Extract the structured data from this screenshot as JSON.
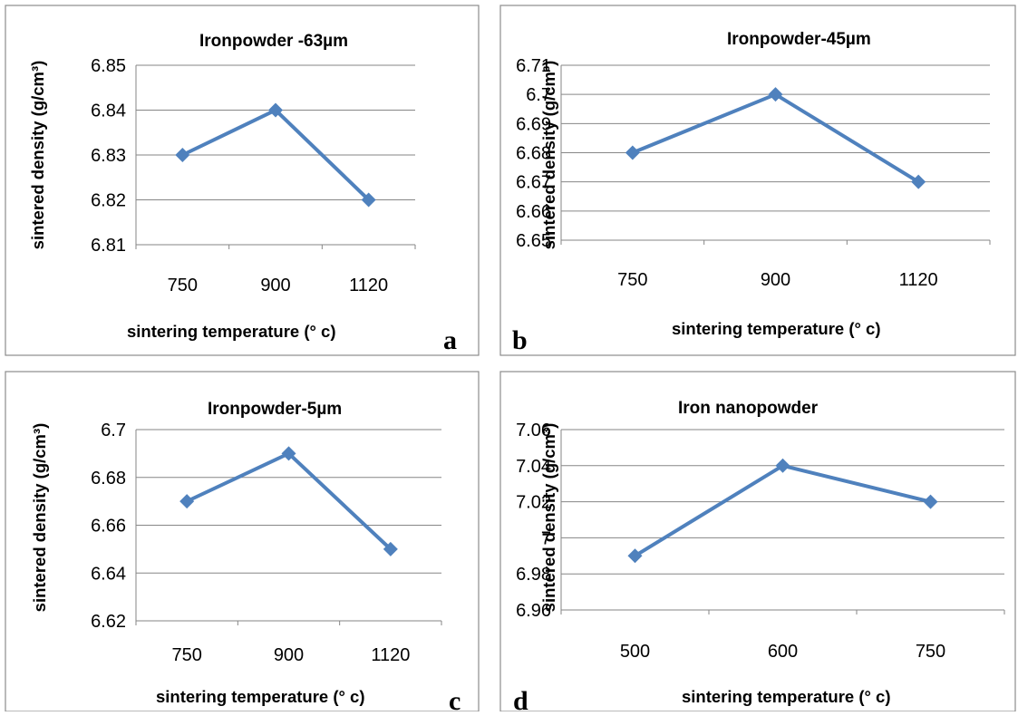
{
  "marker_color": "#4f81bd",
  "chart_data": [
    {
      "type": "line",
      "letter": "a",
      "title": "Ironpowder -63µm",
      "xlabel": "sintering temperature (° c)",
      "ylabel": "sintered density (g/cm³)",
      "categories": [
        "750",
        "900",
        "1120"
      ],
      "values": [
        6.83,
        6.84,
        6.82
      ],
      "ylim": [
        6.81,
        6.85
      ],
      "yticks": [
        "6.81",
        "6.82",
        "6.83",
        "6.84",
        "6.85"
      ],
      "grid": true
    },
    {
      "type": "line",
      "letter": "b",
      "title": "Ironpowder-45µm",
      "xlabel": "sintering temperature (° c)",
      "ylabel": "sintered density (g/cm³)",
      "categories": [
        "750",
        "900",
        "1120"
      ],
      "values": [
        6.68,
        6.7,
        6.67
      ],
      "ylim": [
        6.65,
        6.71
      ],
      "yticks": [
        "6.65",
        "6.66",
        "6.67",
        "6.68",
        "6.69",
        "6.7",
        "6.71"
      ],
      "grid": true
    },
    {
      "type": "line",
      "letter": "c",
      "title": "Ironpowder-5µm",
      "xlabel": "sintering temperature (° c)",
      "ylabel": "sintered density (g/cm³)",
      "categories": [
        "750",
        "900",
        "1120"
      ],
      "values": [
        6.67,
        6.69,
        6.65
      ],
      "ylim": [
        6.62,
        6.7
      ],
      "yticks": [
        "6.62",
        "6.64",
        "6.66",
        "6.68",
        "6.7"
      ],
      "grid": true
    },
    {
      "type": "line",
      "letter": "d",
      "title": "Iron nanopowder",
      "xlabel": "sintering temperature (° c)",
      "ylabel": "sintered density (g/cm³)",
      "categories": [
        "500",
        "600",
        "750"
      ],
      "values": [
        6.99,
        7.04,
        7.02
      ],
      "ylim": [
        6.96,
        7.06
      ],
      "yticks": [
        "6.96",
        "6.98",
        "7",
        "7.02",
        "7.04",
        "7.06"
      ],
      "grid": true
    }
  ]
}
